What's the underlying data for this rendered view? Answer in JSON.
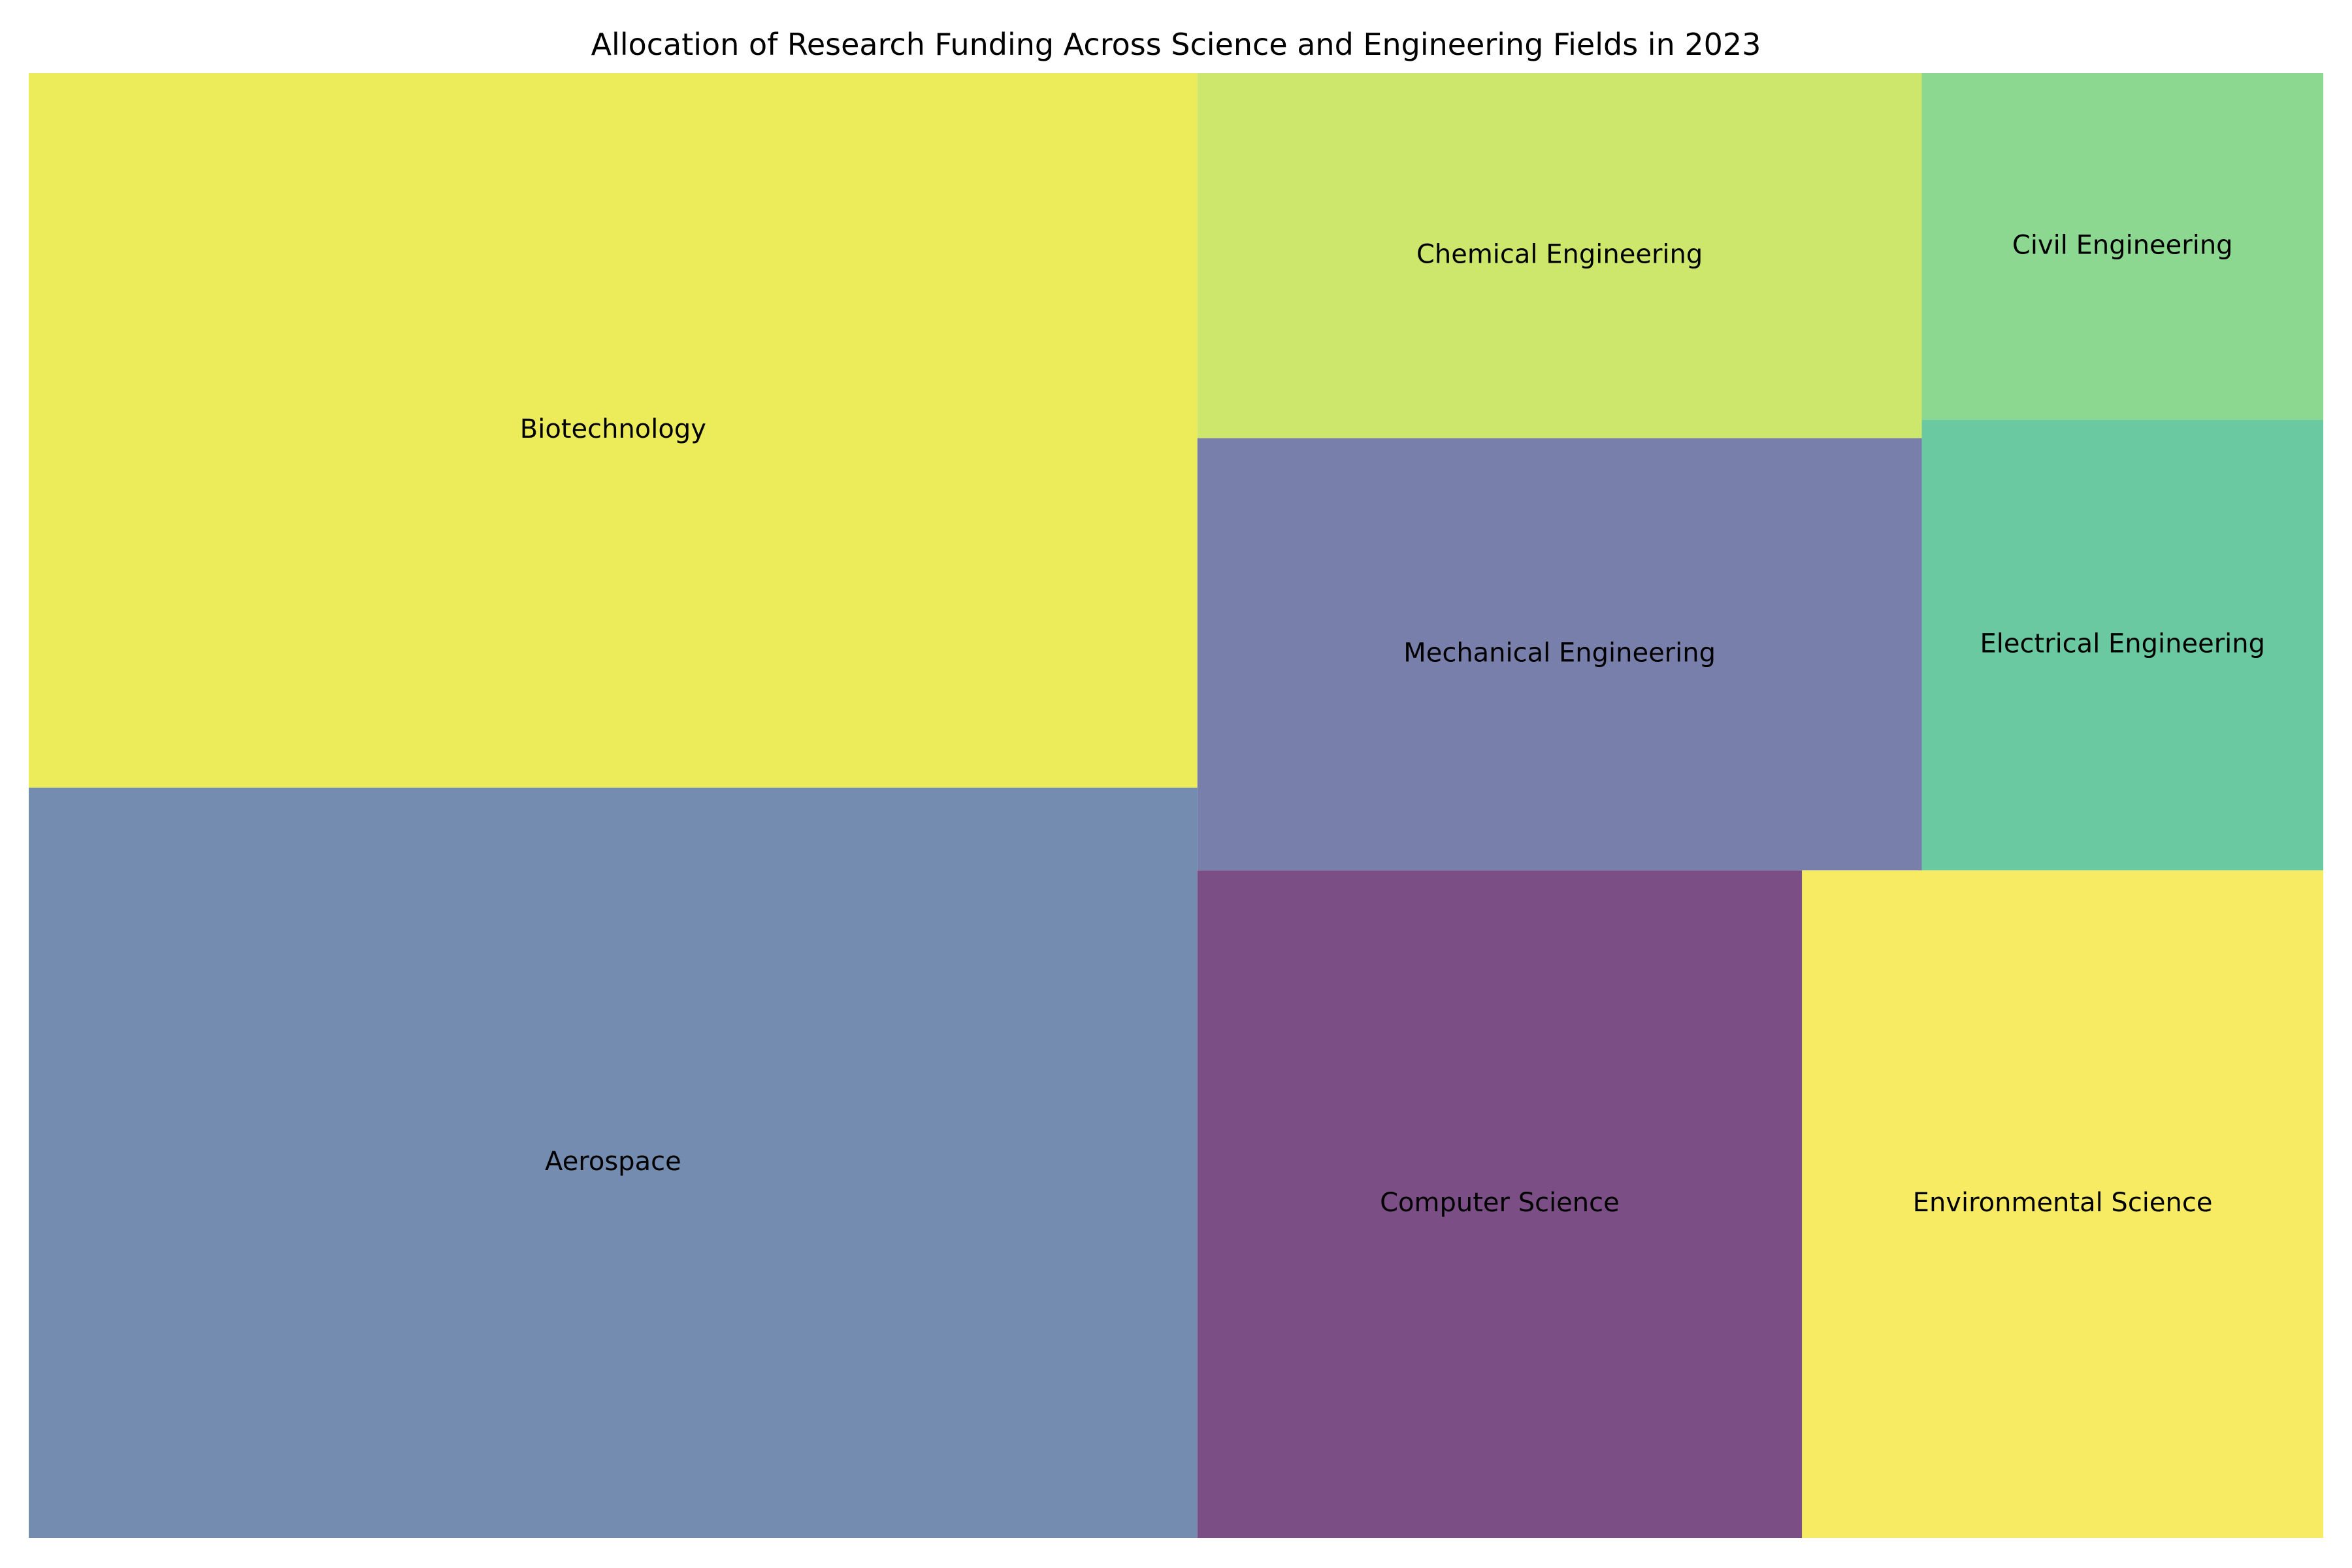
{
  "chart_data": {
    "type": "treemap",
    "title": "Allocation of Research Funding Across Science and Engineering Fields in 2023",
    "tiles": [
      {
        "name": "Biotechnology",
        "value": 120,
        "color": "#ecec5b"
      },
      {
        "name": "Aerospace",
        "value": 126,
        "color": "#738caf"
      },
      {
        "name": "Chemical Engineering",
        "value": 38,
        "color": "#cce76c"
      },
      {
        "name": "Mechanical Engineering",
        "value": 45,
        "color": "#797fab"
      },
      {
        "name": "Computer Science",
        "value": 58,
        "color": "#7c4e86"
      },
      {
        "name": "Environmental Science",
        "value": 50,
        "color": "#f6eb63"
      },
      {
        "name": "Civil Engineering",
        "value": 20,
        "color": "#8dd891"
      },
      {
        "name": "Electrical Engineering",
        "value": 26,
        "color": "#6bc9a2"
      }
    ]
  }
}
